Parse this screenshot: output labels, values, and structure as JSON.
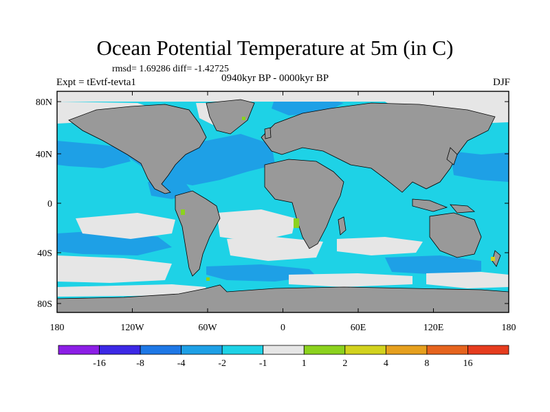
{
  "title": "Ocean Potential Temperature at 5m (in C)",
  "stats": "rmsd= 1.69286  diff= -1.42725",
  "experiment": "Expt = tEvtf-tevta1",
  "period": "0940kyr BP - 0000kyr BP",
  "season": "DJF",
  "lat_ticks": [
    "80N",
    "40N",
    "0",
    "40S",
    "80S"
  ],
  "lon_ticks": [
    "180",
    "120W",
    "60W",
    "0",
    "60E",
    "120E",
    "180"
  ],
  "colorbar": {
    "labels": [
      "-16",
      "-8",
      "-4",
      "-2",
      "-1",
      "1",
      "2",
      "4",
      "8",
      "16"
    ],
    "colors": [
      "#8c1ee6",
      "#3c28e6",
      "#1e78e6",
      "#1ea0e6",
      "#1ed2e6",
      "#e6e6e6",
      "#8cd21e",
      "#d2d21e",
      "#e6a01e",
      "#e6641e",
      "#e63c1e"
    ]
  },
  "map_colors": {
    "land": "#999999",
    "ocean_main": "#1ed2e6",
    "ocean_cool": "#1ea0e6",
    "neutral": "#e6e6e6",
    "warm": "#8cd21e",
    "hot": "#d2d21e"
  }
}
